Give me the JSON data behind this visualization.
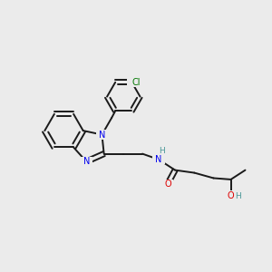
{
  "background_color": "#ebebeb",
  "bond_color": "#1a1a1a",
  "N_color": "#0000ee",
  "O_color": "#dd0000",
  "Cl_color": "#007700",
  "H_color": "#4a9898",
  "figsize": [
    3.0,
    3.0
  ],
  "dpi": 100,
  "xlim": [
    0,
    10
  ],
  "ylim": [
    0,
    10
  ]
}
